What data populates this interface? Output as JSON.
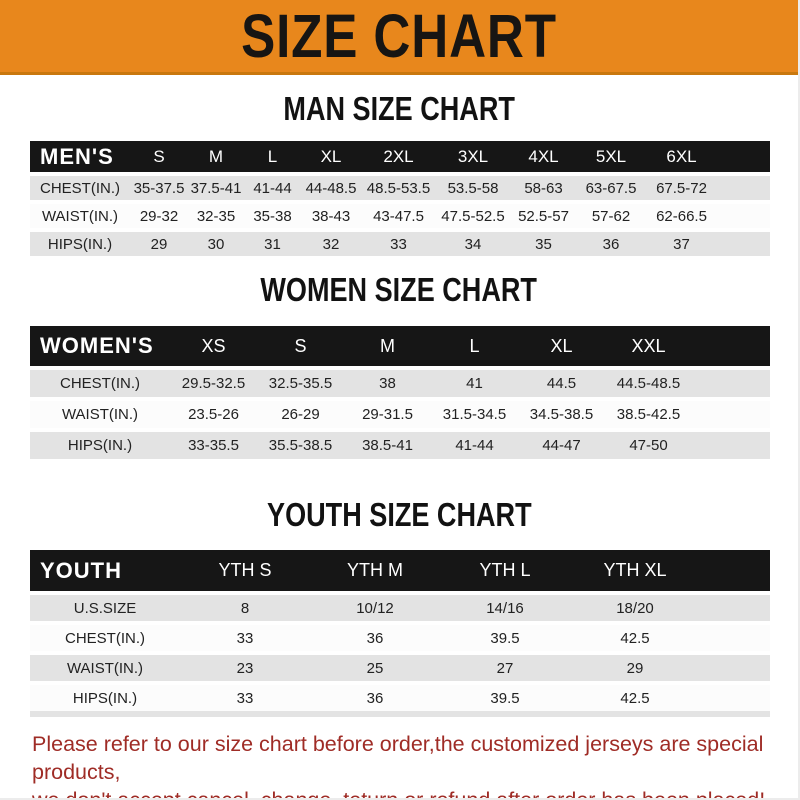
{
  "banner": {
    "title": "SIZE CHART"
  },
  "colors": {
    "banner_bg": "#E8871C",
    "banner_edge": "#C9780E",
    "header_bar": "#161616",
    "row_gray": "#E3E3E3",
    "row_white": "#FCFCFC",
    "footer_text": "#9F2C26"
  },
  "tables": {
    "men": {
      "heading": "MAN SIZE CHART",
      "corner_label": "MEN'S",
      "columns": [
        "S",
        "M",
        "L",
        "XL",
        "2XL",
        "3XL",
        "4XL",
        "5XL",
        "6XL"
      ],
      "rows": [
        {
          "label": "CHEST(IN.)",
          "values": [
            "35-37.5",
            "37.5-41",
            "41-44",
            "44-48.5",
            "48.5-53.5",
            "53.5-58",
            "58-63",
            "63-67.5",
            "67.5-72"
          ]
        },
        {
          "label": "WAIST(IN.)",
          "values": [
            "29-32",
            "32-35",
            "35-38",
            "38-43",
            "43-47.5",
            "47.5-52.5",
            "52.5-57",
            "57-62",
            "62-66.5"
          ]
        },
        {
          "label": "HIPS(IN.)",
          "values": [
            "29",
            "30",
            "31",
            "32",
            "33",
            "34",
            "35",
            "36",
            "37"
          ]
        }
      ]
    },
    "women": {
      "heading": "WOMEN SIZE CHART",
      "corner_label": "WOMEN'S",
      "columns": [
        "XS",
        "S",
        "M",
        "L",
        "XL",
        "XXL"
      ],
      "rows": [
        {
          "label": "CHEST(IN.)",
          "values": [
            "29.5-32.5",
            "32.5-35.5",
            "38",
            "41",
            "44.5",
            "44.5-48.5"
          ]
        },
        {
          "label": "WAIST(IN.)",
          "values": [
            "23.5-26",
            "26-29",
            "29-31.5",
            "31.5-34.5",
            "34.5-38.5",
            "38.5-42.5"
          ]
        },
        {
          "label": "HIPS(IN.)",
          "values": [
            "33-35.5",
            "35.5-38.5",
            "38.5-41",
            "41-44",
            "44-47",
            "47-50"
          ]
        }
      ]
    },
    "youth": {
      "heading": "YOUTH SIZE CHART",
      "corner_label": "YOUTH",
      "columns": [
        "YTH S",
        "YTH M",
        "YTH L",
        "YTH XL"
      ],
      "rows": [
        {
          "label": "U.S.SIZE",
          "values": [
            "8",
            "10/12",
            "14/16",
            "18/20"
          ]
        },
        {
          "label": "CHEST(IN.)",
          "values": [
            "33",
            "36",
            "39.5",
            "42.5"
          ]
        },
        {
          "label": "WAIST(IN.)",
          "values": [
            "23",
            "25",
            "27",
            "29"
          ]
        },
        {
          "label": "HIPS(IN.)",
          "values": [
            "33",
            "36",
            "39.5",
            "42.5"
          ]
        }
      ]
    }
  },
  "footer": {
    "line1": "Please refer to our size chart before order,the customized jerseys are special products,",
    "line2": "we don't accept cancel, change, teturn or refund after order has been placed!"
  }
}
